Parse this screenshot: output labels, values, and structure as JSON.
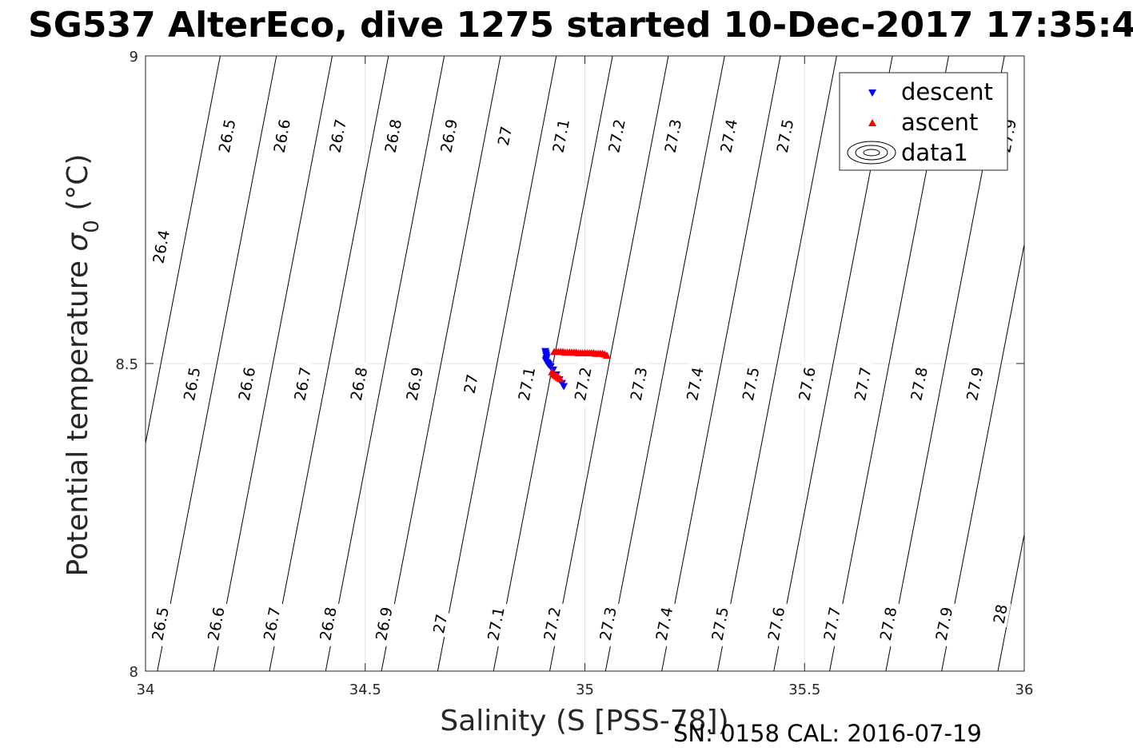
{
  "chart_data": {
    "type": "scatter",
    "title": "SG537 AlterEco, dive 1275 started 10-Dec-2017 17:35:4",
    "xlabel": "Salinity (S [PSS-78])",
    "ylabel": "Potential temperature σ₀ (°C)",
    "ylabel_main": "Potential temperature ",
    "ylabel_sigma": "σ",
    "ylabel_sub": "0",
    "ylabel_unit": " (°C)",
    "xlim": [
      34,
      36
    ],
    "ylim": [
      8,
      9
    ],
    "xticks": [
      34,
      34.5,
      35,
      35.5,
      36
    ],
    "xtick_labels": [
      "34",
      "34.5",
      "35",
      "35.5",
      "36"
    ],
    "yticks": [
      8,
      8.5,
      9
    ],
    "ytick_labels": [
      "8",
      "8.5",
      "9"
    ],
    "grid": true,
    "legend_position": "top-right",
    "legend": [
      "descent",
      "ascent",
      "data1"
    ],
    "footer": "SN: 0158  CAL: 2016-07-19",
    "density_contours": {
      "levels": [
        26.4,
        26.5,
        26.6,
        26.7,
        26.8,
        26.9,
        27.0,
        27.1,
        27.2,
        27.3,
        27.4,
        27.5,
        27.6,
        27.7,
        27.8,
        27.9,
        28.0
      ],
      "salinity_at_theta_8": [
        33.9,
        34.027,
        34.155,
        34.282,
        34.41,
        34.537,
        34.665,
        34.792,
        34.92,
        35.047,
        35.175,
        35.302,
        35.43,
        35.557,
        35.685,
        35.812,
        35.94
      ],
      "salinity_at_theta_9": [
        34.17,
        34.298,
        34.425,
        34.553,
        34.68,
        34.808,
        34.935,
        35.063,
        35.19,
        35.318,
        35.445,
        35.573,
        35.7,
        35.828,
        35.955,
        36.083,
        36.21
      ],
      "labels": [
        {
          "text": "26.4",
          "s": 34.035,
          "theta": 8.69
        },
        {
          "text": "26.5",
          "s": 34.185,
          "theta": 8.87
        },
        {
          "text": "26.6",
          "s": 34.31,
          "theta": 8.87
        },
        {
          "text": "26.7",
          "s": 34.437,
          "theta": 8.87
        },
        {
          "text": "26.8",
          "s": 34.563,
          "theta": 8.87
        },
        {
          "text": "26.9",
          "s": 34.69,
          "theta": 8.87
        },
        {
          "text": "27",
          "s": 34.817,
          "theta": 8.87
        },
        {
          "text": "27.1",
          "s": 34.945,
          "theta": 8.87
        },
        {
          "text": "27.2",
          "s": 35.072,
          "theta": 8.87
        },
        {
          "text": "27.3",
          "s": 35.2,
          "theta": 8.87
        },
        {
          "text": "27.4",
          "s": 35.327,
          "theta": 8.87
        },
        {
          "text": "27.5",
          "s": 35.455,
          "theta": 8.87
        },
        {
          "text": "27.9",
          "s": 35.962,
          "theta": 8.87
        },
        {
          "text": "26.5",
          "s": 34.105,
          "theta": 8.467
        },
        {
          "text": "26.6",
          "s": 34.23,
          "theta": 8.467
        },
        {
          "text": "26.7",
          "s": 34.357,
          "theta": 8.467
        },
        {
          "text": "26.8",
          "s": 34.485,
          "theta": 8.467
        },
        {
          "text": "26.9",
          "s": 34.612,
          "theta": 8.467
        },
        {
          "text": "27",
          "s": 34.74,
          "theta": 8.467
        },
        {
          "text": "27.1",
          "s": 34.867,
          "theta": 8.467
        },
        {
          "text": "27.2",
          "s": 34.995,
          "theta": 8.467
        },
        {
          "text": "27.3",
          "s": 35.122,
          "theta": 8.467
        },
        {
          "text": "27.4",
          "s": 35.25,
          "theta": 8.467
        },
        {
          "text": "27.5",
          "s": 35.377,
          "theta": 8.467
        },
        {
          "text": "27.6",
          "s": 35.505,
          "theta": 8.467
        },
        {
          "text": "27.7",
          "s": 35.632,
          "theta": 8.467
        },
        {
          "text": "27.8",
          "s": 35.76,
          "theta": 8.467
        },
        {
          "text": "27.9",
          "s": 35.887,
          "theta": 8.467
        },
        {
          "text": "26.5",
          "s": 34.033,
          "theta": 8.077
        },
        {
          "text": "26.6",
          "s": 34.16,
          "theta": 8.077
        },
        {
          "text": "26.7",
          "s": 34.287,
          "theta": 8.077
        },
        {
          "text": "26.8",
          "s": 34.415,
          "theta": 8.077
        },
        {
          "text": "26.9",
          "s": 34.542,
          "theta": 8.077
        },
        {
          "text": "27",
          "s": 34.67,
          "theta": 8.077
        },
        {
          "text": "27.1",
          "s": 34.797,
          "theta": 8.077
        },
        {
          "text": "27.2",
          "s": 34.925,
          "theta": 8.077
        },
        {
          "text": "27.3",
          "s": 35.052,
          "theta": 8.077
        },
        {
          "text": "27.4",
          "s": 35.18,
          "theta": 8.077
        },
        {
          "text": "27.5",
          "s": 35.307,
          "theta": 8.077
        },
        {
          "text": "27.6",
          "s": 35.435,
          "theta": 8.077
        },
        {
          "text": "27.7",
          "s": 35.562,
          "theta": 8.077
        },
        {
          "text": "27.8",
          "s": 35.69,
          "theta": 8.077
        },
        {
          "text": "27.9",
          "s": 35.817,
          "theta": 8.077
        },
        {
          "text": "28",
          "s": 35.945,
          "theta": 8.093
        }
      ]
    },
    "series": [
      {
        "name": "descent",
        "color": "#0000ff",
        "marker": "triangle-down",
        "x": [
          34.91,
          34.911,
          34.912,
          34.913,
          34.912,
          34.911,
          34.914,
          34.916,
          34.918,
          34.922,
          34.928,
          34.935,
          34.942,
          34.948,
          34.952
        ],
        "y": [
          8.52,
          8.517,
          8.514,
          8.511,
          8.508,
          8.505,
          8.502,
          8.5,
          8.498,
          8.495,
          8.49,
          8.482,
          8.474,
          8.468,
          8.463
        ]
      },
      {
        "name": "ascent",
        "color": "#ff0000",
        "marker": "triangle-up",
        "x": [
          34.93,
          34.935,
          34.94,
          34.945,
          34.95,
          34.955,
          34.96,
          34.965,
          34.97,
          34.975,
          34.98,
          34.985,
          34.99,
          34.995,
          35.0,
          35.005,
          35.01,
          35.015,
          35.02,
          35.025,
          35.03,
          35.035,
          35.04,
          35.045,
          35.05,
          34.925,
          34.928,
          34.932,
          34.936,
          34.94,
          34.944
        ],
        "y": [
          8.519,
          8.519,
          8.519,
          8.519,
          8.519,
          8.518,
          8.518,
          8.518,
          8.518,
          8.518,
          8.518,
          8.517,
          8.517,
          8.517,
          8.517,
          8.517,
          8.517,
          8.517,
          8.517,
          8.516,
          8.516,
          8.516,
          8.516,
          8.515,
          8.513,
          8.486,
          8.483,
          8.481,
          8.479,
          8.477,
          8.475
        ]
      }
    ]
  }
}
